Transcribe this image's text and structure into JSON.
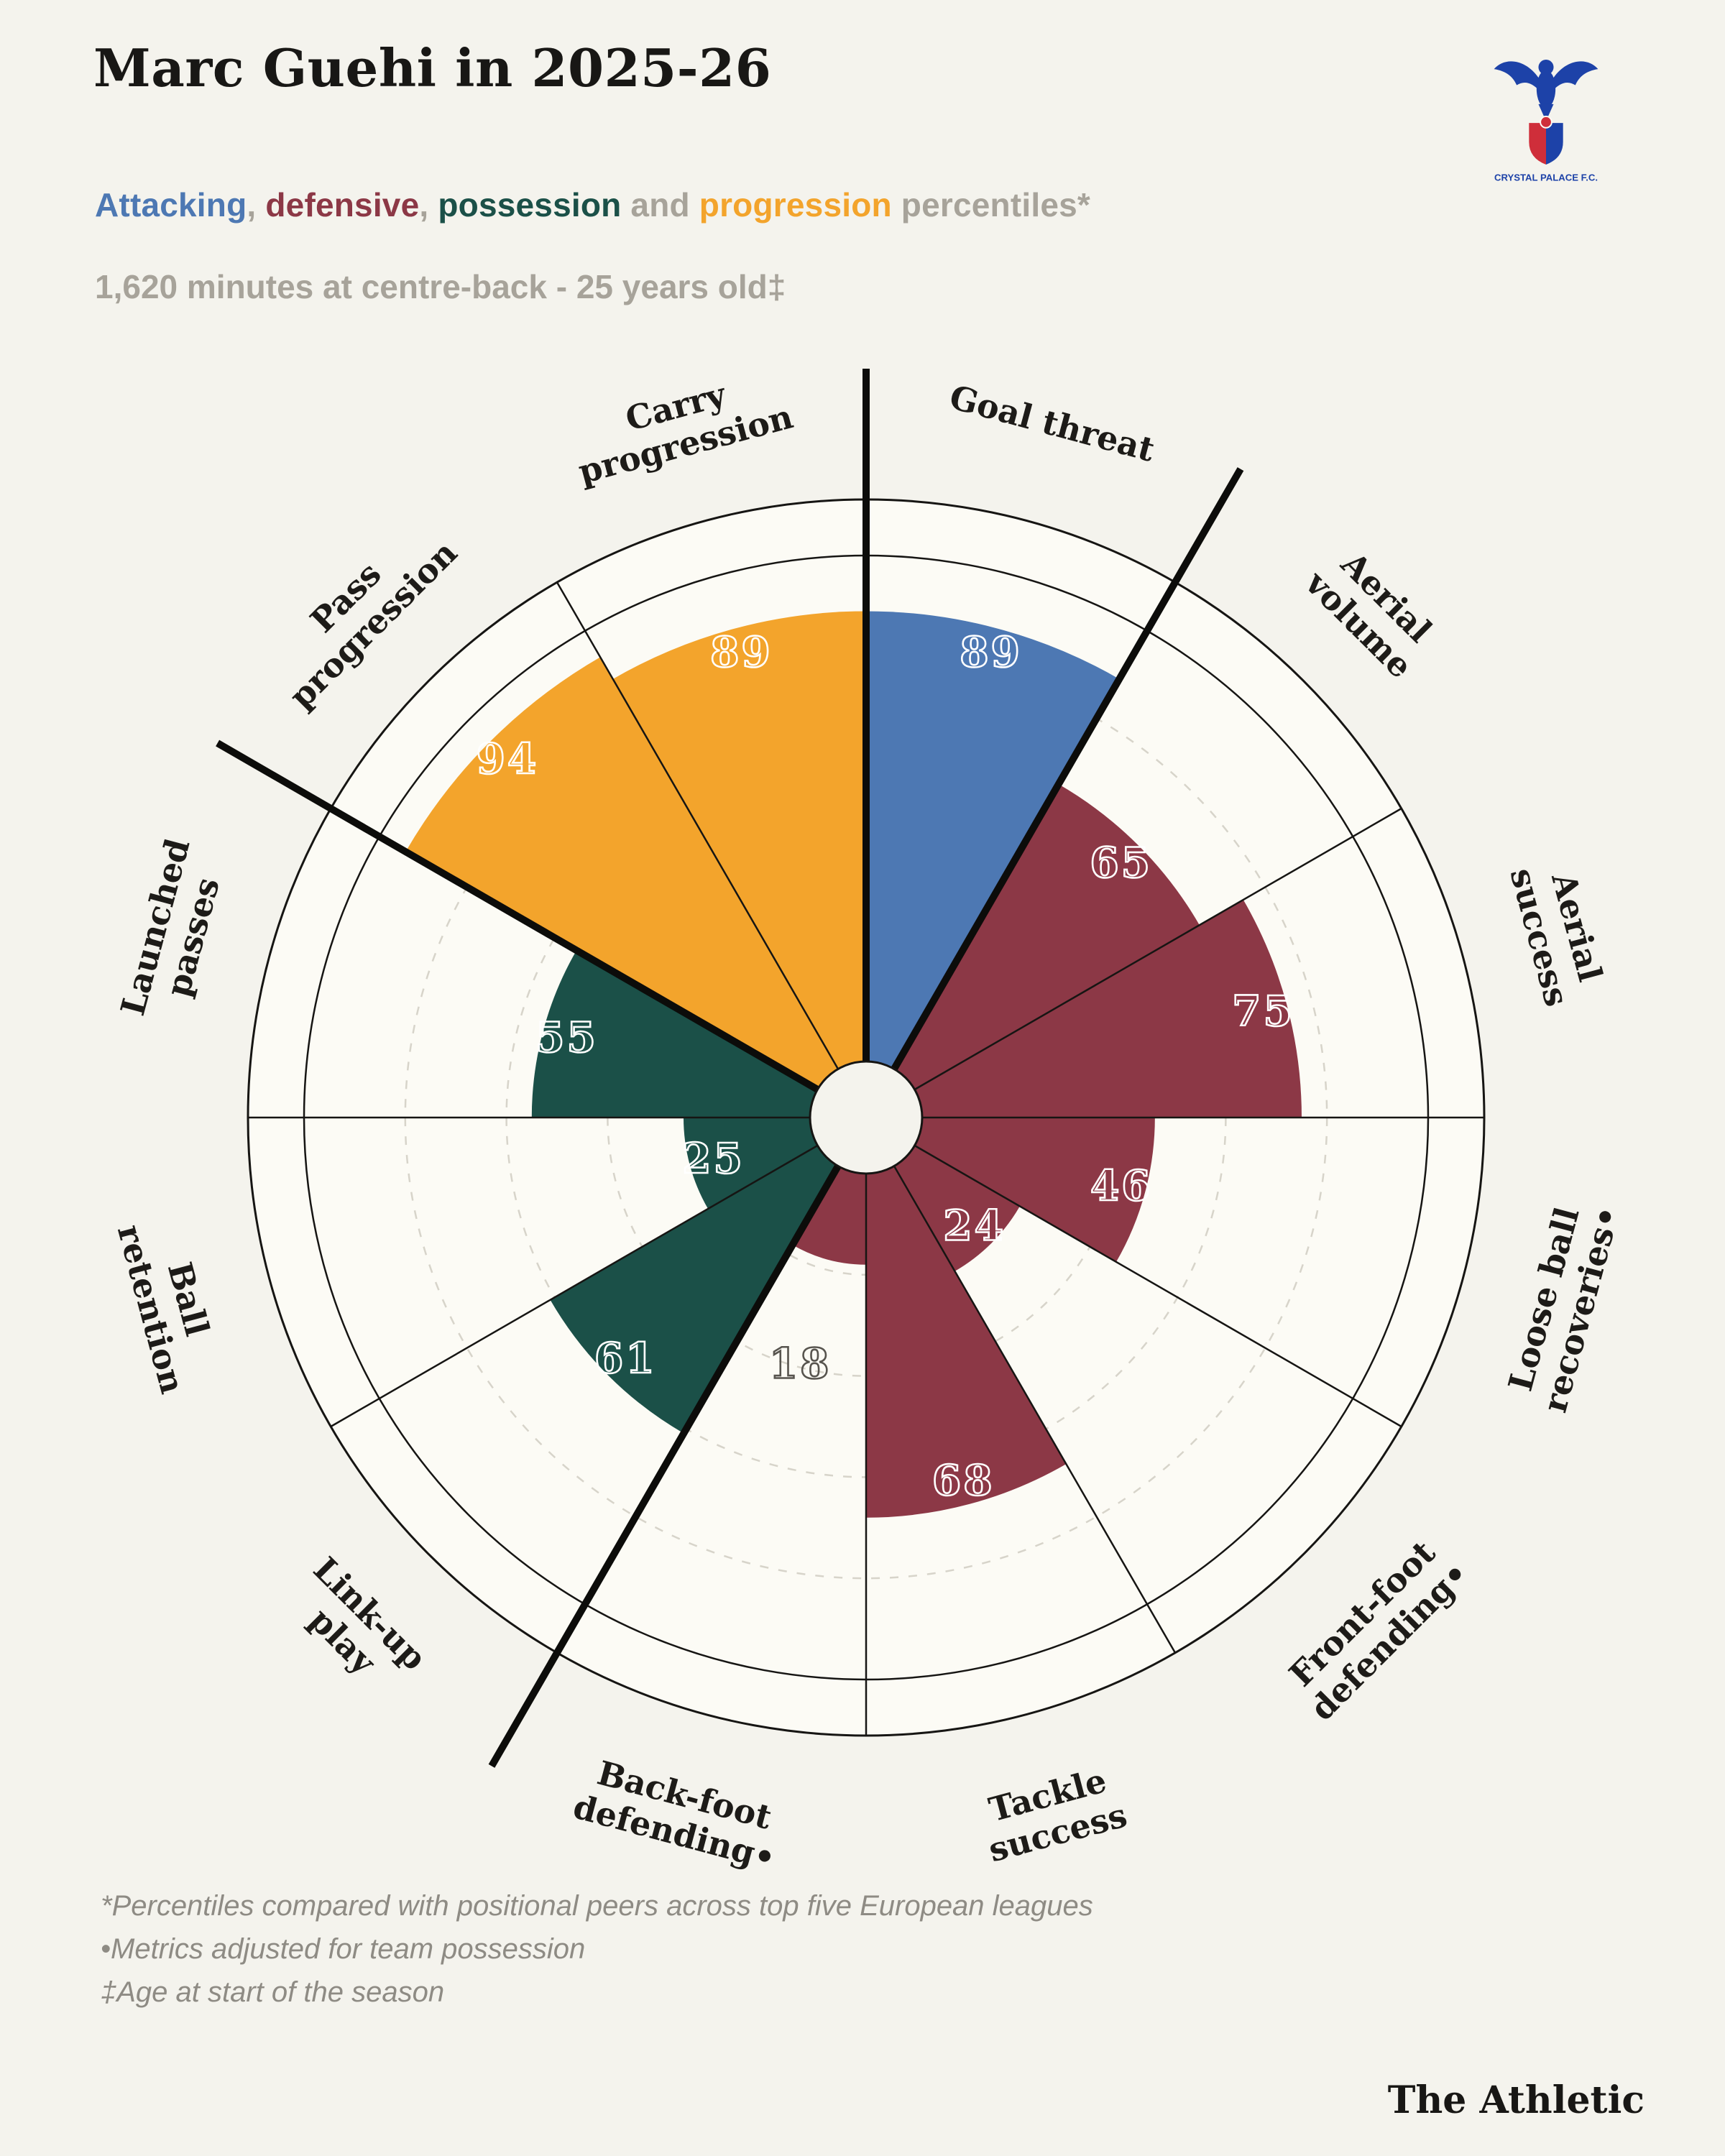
{
  "palette": {
    "attacking": "#4d78b3",
    "defensive": "#8c3846",
    "possession": "#1b5048",
    "progression": "#f3a42c",
    "muted": "#a7a39a",
    "ink": "#1d1b18"
  },
  "header": {
    "title": "Marc Guehi in 2025-26",
    "subtitle_segments": [
      {
        "text": "Attacking",
        "color": "attacking"
      },
      {
        "text": ", ",
        "color": "muted"
      },
      {
        "text": "defensive",
        "color": "defensive"
      },
      {
        "text": ", ",
        "color": "muted"
      },
      {
        "text": "possession",
        "color": "possession"
      },
      {
        "text": " and ",
        "color": "muted"
      },
      {
        "text": "progression",
        "color": "progression"
      },
      {
        "text": " percentiles*",
        "color": "muted"
      }
    ],
    "meta": "1,620 minutes at centre-back - 25 years old‡"
  },
  "crest": {
    "banner_text": "CRYSTAL PALACE F.C."
  },
  "chart_data": {
    "type": "bar",
    "variant": "pizza-polar",
    "title": "Marc Guehi in 2025-26",
    "units": "percentile",
    "rlim": [
      0,
      100
    ],
    "gridlines": [
      20,
      40,
      60,
      80
    ],
    "grid": "dashed-circles",
    "group_boundaries_deg": [
      0,
      30,
      210,
      300
    ],
    "slices": [
      {
        "label": "Goal threat",
        "label_lines": [
          "Goal threat"
        ],
        "value": 89,
        "group": "attacking"
      },
      {
        "label": "Aerial volume",
        "label_lines": [
          "Aerial",
          "volume"
        ],
        "value": 65,
        "group": "defensive"
      },
      {
        "label": "Aerial success",
        "label_lines": [
          "Aerial",
          "success"
        ],
        "value": 75,
        "group": "defensive"
      },
      {
        "label": "Loose ball recoveries•",
        "label_lines": [
          "Loose ball",
          "recoveries•"
        ],
        "value": 46,
        "group": "defensive"
      },
      {
        "label": "Front-foot defending•",
        "label_lines": [
          "Front-foot",
          "defending•"
        ],
        "value": 24,
        "group": "defensive"
      },
      {
        "label": "Tackle success",
        "label_lines": [
          "Tackle",
          "success"
        ],
        "value": 68,
        "group": "defensive"
      },
      {
        "label": "Back-foot defending•",
        "label_lines": [
          "Back-foot",
          "defending•"
        ],
        "value": 18,
        "group": "defensive"
      },
      {
        "label": "Link-up play",
        "label_lines": [
          "Link-up",
          "play"
        ],
        "value": 61,
        "group": "possession"
      },
      {
        "label": "Ball retention",
        "label_lines": [
          "Ball",
          "retention"
        ],
        "value": 25,
        "group": "possession"
      },
      {
        "label": "Launched passes",
        "label_lines": [
          "Launched",
          "passes"
        ],
        "value": 55,
        "group": "possession"
      },
      {
        "label": "Pass progression",
        "label_lines": [
          "Pass",
          "progression"
        ],
        "value": 94,
        "group": "progression"
      },
      {
        "label": "Carry progression",
        "label_lines": [
          "Carry",
          "progression"
        ],
        "value": 89,
        "group": "progression"
      }
    ]
  },
  "footnotes": [
    "*Percentiles compared with positional peers across top five European leagues",
    "•Metrics adjusted for team possession",
    "‡Age at start of the season"
  ],
  "branding": {
    "wordmark": "The Athletic"
  }
}
